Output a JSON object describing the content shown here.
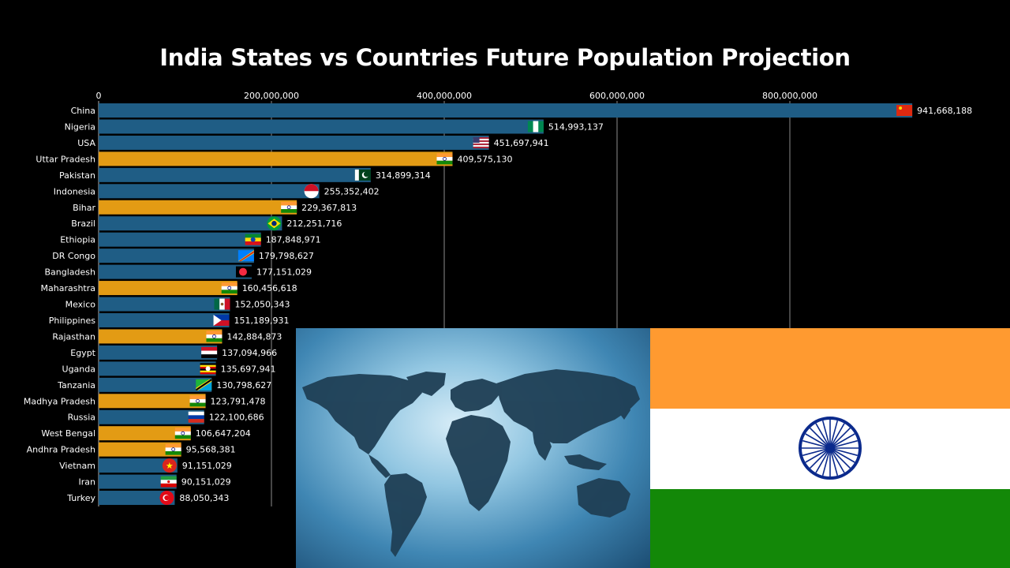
{
  "chart_data": {
    "type": "bar",
    "orientation": "horizontal",
    "title": "India States vs Countries Future Population Projection",
    "xlim": [
      0,
      1000000000
    ],
    "x_ticks": [
      {
        "value": 0,
        "label": "0"
      },
      {
        "value": 200000000,
        "label": "200,000,000"
      },
      {
        "value": 400000000,
        "label": "400,000,000"
      },
      {
        "value": 600000000,
        "label": "600,000,000"
      },
      {
        "value": 800000000,
        "label": "800,000,000"
      }
    ],
    "grid": "vertical",
    "colors": {
      "country": "#1f5d85",
      "indian_state": "#e39b14",
      "gridline": "#8c8c8c"
    },
    "bars": [
      {
        "name": "China",
        "value": 941668188,
        "label": "941,668,188",
        "kind": "country",
        "flag": "china"
      },
      {
        "name": "Nigeria",
        "value": 514993137,
        "label": "514,993,137",
        "kind": "country",
        "flag": "nigeria"
      },
      {
        "name": "USA",
        "value": 451697941,
        "label": "451,697,941",
        "kind": "country",
        "flag": "usa"
      },
      {
        "name": "Uttar Pradesh",
        "value": 409575130,
        "label": "409,575,130",
        "kind": "indian_state",
        "flag": "india"
      },
      {
        "name": "Pakistan",
        "value": 314899314,
        "label": "314,899,314",
        "kind": "country",
        "flag": "pakistan"
      },
      {
        "name": "Indonesia",
        "value": 255352402,
        "label": "255,352,402",
        "kind": "country",
        "flag": "indonesia"
      },
      {
        "name": "Bihar",
        "value": 229367813,
        "label": "229,367,813",
        "kind": "indian_state",
        "flag": "india"
      },
      {
        "name": "Brazil",
        "value": 212251716,
        "label": "212,251,716",
        "kind": "country",
        "flag": "brazil"
      },
      {
        "name": "Ethiopia",
        "value": 187848971,
        "label": "187,848,971",
        "kind": "country",
        "flag": "ethiopia"
      },
      {
        "name": "DR Congo",
        "value": 179798627,
        "label": "179,798,627",
        "kind": "country",
        "flag": "drcongo"
      },
      {
        "name": "Bangladesh",
        "value": 177151029,
        "label": "177,151,029",
        "kind": "country",
        "flag": "bangladesh"
      },
      {
        "name": "Maharashtra",
        "value": 160456618,
        "label": "160,456,618",
        "kind": "indian_state",
        "flag": "india"
      },
      {
        "name": "Mexico",
        "value": 152050343,
        "label": "152,050,343",
        "kind": "country",
        "flag": "mexico"
      },
      {
        "name": "Philippines",
        "value": 151189931,
        "label": "151,189,931",
        "kind": "country",
        "flag": "philippines"
      },
      {
        "name": "Rajasthan",
        "value": 142884873,
        "label": "142,884,873",
        "kind": "indian_state",
        "flag": "india"
      },
      {
        "name": "Egypt",
        "value": 137094966,
        "label": "137,094,966",
        "kind": "country",
        "flag": "egypt"
      },
      {
        "name": "Uganda",
        "value": 135697941,
        "label": "135,697,941",
        "kind": "country",
        "flag": "uganda"
      },
      {
        "name": "Tanzania",
        "value": 130798627,
        "label": "130,798,627",
        "kind": "country",
        "flag": "tanzania"
      },
      {
        "name": "Madhya Pradesh",
        "value": 123791478,
        "label": "123,791,478",
        "kind": "indian_state",
        "flag": "india"
      },
      {
        "name": "Russia",
        "value": 122100686,
        "label": "122,100,686",
        "kind": "country",
        "flag": "russia"
      },
      {
        "name": "West Bengal",
        "value": 106647204,
        "label": "106,647,204",
        "kind": "indian_state",
        "flag": "india"
      },
      {
        "name": "Andhra Pradesh",
        "value": 95568381,
        "label": "95,568,381",
        "kind": "indian_state",
        "flag": "india"
      },
      {
        "name": "Vietnam",
        "value": 91151029,
        "label": "91,151,029",
        "kind": "country",
        "flag": "vietnam"
      },
      {
        "name": "Iran",
        "value": 90151029,
        "label": "90,151,029",
        "kind": "country",
        "flag": "iran"
      },
      {
        "name": "Turkey",
        "value": 88050343,
        "label": "88,050,343",
        "kind": "country",
        "flag": "turkey"
      }
    ]
  },
  "overlay": {
    "world_map_image": "world-map-icon",
    "flag_image": "india-flag-icon",
    "flag_colors": {
      "saffron": "#ff9a30",
      "white": "#ffffff",
      "green": "#138808",
      "chakra": "#0b2a8c"
    }
  }
}
